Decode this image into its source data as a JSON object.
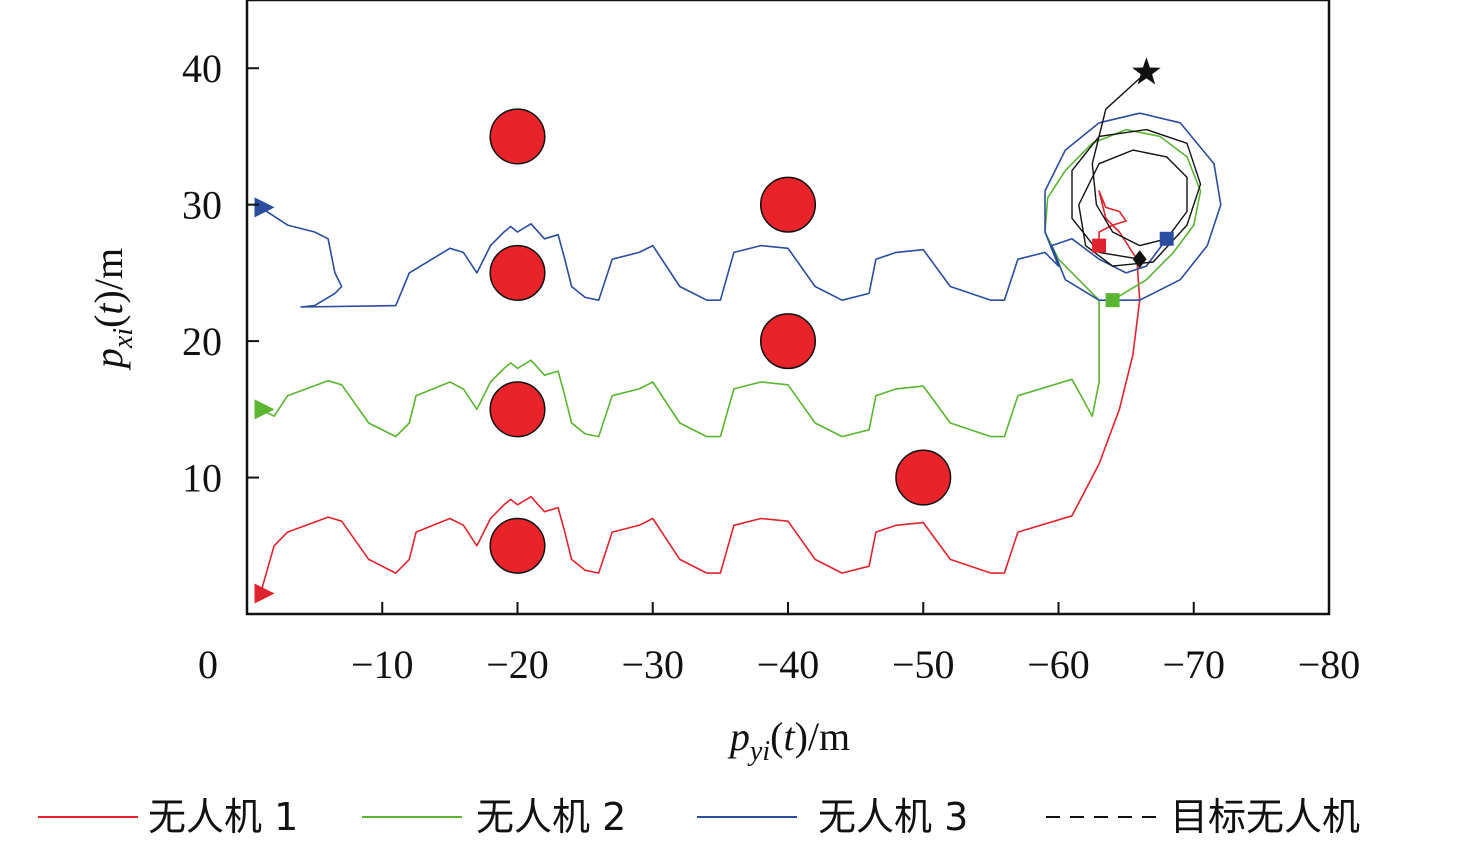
{
  "chart_data": {
    "type": "line",
    "xlabel": "p_yi(t)/m",
    "ylabel": "p_xi(t)/m",
    "xlim": [
      0,
      -80
    ],
    "ylim": [
      0,
      45
    ],
    "xticks": [
      0,
      -10,
      -20,
      -30,
      -40,
      -50,
      -60,
      -70,
      -80
    ],
    "xtick_labels": [
      "0",
      "−10",
      "−20",
      "−30",
      "−40",
      "−50",
      "−60",
      "−70",
      "−80"
    ],
    "yticks": [
      10,
      20,
      30,
      40
    ],
    "ytick_labels": [
      "10",
      "20",
      "30",
      "40"
    ],
    "grid": false,
    "legend_position": "bottom",
    "obstacles": [
      {
        "x": -20,
        "y": 35,
        "r": 2,
        "color": "#e8232a"
      },
      {
        "x": -40,
        "y": 30,
        "r": 2,
        "color": "#e8232a"
      },
      {
        "x": -20,
        "y": 25,
        "r": 2,
        "color": "#e8232a"
      },
      {
        "x": -40,
        "y": 20,
        "r": 2,
        "color": "#e8232a"
      },
      {
        "x": -20,
        "y": 15,
        "r": 2,
        "color": "#e8232a"
      },
      {
        "x": -50,
        "y": 10,
        "r": 2,
        "color": "#e8232a"
      },
      {
        "x": -20,
        "y": 5,
        "r": 2,
        "color": "#e8232a"
      }
    ],
    "series": [
      {
        "name": "无人机 1",
        "color": "#e0242f",
        "style": "solid",
        "start": {
          "x": -1,
          "y": 1.5
        },
        "end": {
          "x": -63,
          "y": 27
        },
        "points": [
          [
            -1,
            1.5
          ],
          [
            -2,
            5
          ],
          [
            -3,
            6
          ],
          [
            -6,
            7.1
          ],
          [
            -7,
            6.8
          ],
          [
            -9,
            4
          ],
          [
            -11,
            3
          ],
          [
            -12,
            4
          ],
          [
            -12.5,
            6
          ],
          [
            -15,
            7
          ],
          [
            -16,
            6.5
          ],
          [
            -17,
            5
          ],
          [
            -18,
            7
          ],
          [
            -19,
            8
          ],
          [
            -19.5,
            8.4
          ],
          [
            -20,
            8
          ],
          [
            -21,
            8.6
          ],
          [
            -22,
            7.5
          ],
          [
            -23,
            7.8
          ],
          [
            -23.5,
            6
          ],
          [
            -24,
            4
          ],
          [
            -25,
            3.2
          ],
          [
            -26,
            3
          ],
          [
            -27,
            6
          ],
          [
            -29,
            6.5
          ],
          [
            -30,
            7
          ],
          [
            -32,
            4
          ],
          [
            -34,
            3
          ],
          [
            -35,
            3
          ],
          [
            -36,
            6.5
          ],
          [
            -38,
            7
          ],
          [
            -40,
            6.8
          ],
          [
            -42,
            4
          ],
          [
            -44,
            3
          ],
          [
            -46,
            3.5
          ],
          [
            -46.5,
            6
          ],
          [
            -48,
            6.5
          ],
          [
            -50,
            6.7
          ],
          [
            -52,
            4
          ],
          [
            -55,
            3
          ],
          [
            -56,
            3
          ],
          [
            -57,
            6
          ],
          [
            -61,
            7.2
          ],
          [
            -63,
            11
          ],
          [
            -64.5,
            15
          ],
          [
            -65.5,
            19
          ],
          [
            -66,
            23
          ],
          [
            -65.8,
            26
          ],
          [
            -64.5,
            28
          ],
          [
            -63.5,
            29
          ],
          [
            -63,
            31
          ],
          [
            -63.5,
            29.8
          ],
          [
            -64.5,
            29.5
          ],
          [
            -65,
            28.8
          ],
          [
            -64,
            28.5
          ],
          [
            -63,
            28
          ],
          [
            -63,
            27
          ]
        ]
      },
      {
        "name": "无人机 2",
        "color": "#5ab530",
        "style": "solid",
        "start": {
          "x": -1,
          "y": 15
        },
        "end": {
          "x": -64,
          "y": 23
        },
        "points": [
          [
            -1,
            15
          ],
          [
            -2,
            14.5
          ],
          [
            -3,
            16
          ],
          [
            -6,
            17.1
          ],
          [
            -7,
            16.8
          ],
          [
            -9,
            14
          ],
          [
            -11,
            13
          ],
          [
            -12,
            14
          ],
          [
            -12.5,
            16
          ],
          [
            -15,
            17
          ],
          [
            -16,
            16.5
          ],
          [
            -17,
            15
          ],
          [
            -18,
            17
          ],
          [
            -19,
            18
          ],
          [
            -19.5,
            18.4
          ],
          [
            -20,
            18
          ],
          [
            -21,
            18.6
          ],
          [
            -22,
            17.5
          ],
          [
            -23,
            17.8
          ],
          [
            -23.5,
            16
          ],
          [
            -24,
            14
          ],
          [
            -25,
            13.2
          ],
          [
            -26,
            13
          ],
          [
            -27,
            16
          ],
          [
            -29,
            16.5
          ],
          [
            -30,
            17
          ],
          [
            -32,
            14
          ],
          [
            -34,
            13
          ],
          [
            -35,
            13
          ],
          [
            -36,
            16.5
          ],
          [
            -38,
            17
          ],
          [
            -40,
            16.8
          ],
          [
            -42,
            14
          ],
          [
            -44,
            13
          ],
          [
            -46,
            13.5
          ],
          [
            -46.5,
            16
          ],
          [
            -48,
            16.5
          ],
          [
            -50,
            16.7
          ],
          [
            -52,
            14
          ],
          [
            -55,
            13
          ],
          [
            -56,
            13
          ],
          [
            -57,
            16
          ],
          [
            -61,
            17.2
          ],
          [
            -62.5,
            14.5
          ],
          [
            -63,
            17
          ],
          [
            -63,
            20
          ],
          [
            -63,
            23
          ],
          [
            -61.5,
            24.5
          ],
          [
            -60,
            26
          ],
          [
            -59,
            28
          ],
          [
            -59.2,
            30.5
          ],
          [
            -60.5,
            32.5
          ],
          [
            -62.5,
            34.5
          ],
          [
            -65,
            35.5
          ],
          [
            -67.5,
            35
          ],
          [
            -69.5,
            33.5
          ],
          [
            -70.5,
            31
          ],
          [
            -70,
            28.5
          ],
          [
            -68.5,
            26.5
          ],
          [
            -66.5,
            24.5
          ],
          [
            -64,
            23
          ]
        ]
      },
      {
        "name": "无人机 3",
        "color": "#2a4da0",
        "style": "solid",
        "start": {
          "x": -1,
          "y": 29.8
        },
        "end": {
          "x": -68,
          "y": 27.5
        },
        "points": [
          [
            -1,
            29.8
          ],
          [
            -3,
            28.5
          ],
          [
            -5,
            28
          ],
          [
            -6,
            27.5
          ],
          [
            -6.5,
            25
          ],
          [
            -7,
            24
          ],
          [
            -6.5,
            23.5
          ],
          [
            -5,
            22.6
          ],
          [
            -4,
            22.5
          ],
          [
            -11,
            22.6
          ],
          [
            -12,
            25
          ],
          [
            -15,
            26.8
          ],
          [
            -16,
            26.5
          ],
          [
            -17,
            25
          ],
          [
            -18,
            27
          ],
          [
            -19,
            28
          ],
          [
            -19.5,
            28.4
          ],
          [
            -20,
            28
          ],
          [
            -21,
            28.6
          ],
          [
            -22,
            27.5
          ],
          [
            -23,
            27.8
          ],
          [
            -23.5,
            26
          ],
          [
            -24,
            24
          ],
          [
            -25,
            23.2
          ],
          [
            -26,
            23
          ],
          [
            -27,
            26
          ],
          [
            -29,
            26.5
          ],
          [
            -30,
            27
          ],
          [
            -32,
            24
          ],
          [
            -34,
            23
          ],
          [
            -35,
            23
          ],
          [
            -36,
            26.5
          ],
          [
            -38,
            27
          ],
          [
            -40,
            26.8
          ],
          [
            -42,
            24
          ],
          [
            -44,
            23
          ],
          [
            -46,
            23.5
          ],
          [
            -46.5,
            26
          ],
          [
            -48,
            26.5
          ],
          [
            -50,
            26.7
          ],
          [
            -52,
            24
          ],
          [
            -55,
            23
          ],
          [
            -56,
            23
          ],
          [
            -57,
            26
          ],
          [
            -59,
            26.5
          ],
          [
            -60,
            25.5
          ],
          [
            -59,
            28
          ],
          [
            -59,
            31
          ],
          [
            -60.5,
            34
          ],
          [
            -63,
            36
          ],
          [
            -66,
            36.7
          ],
          [
            -69,
            36
          ],
          [
            -71.5,
            33
          ],
          [
            -72,
            30
          ],
          [
            -71,
            27
          ],
          [
            -69,
            24.5
          ],
          [
            -66,
            23
          ],
          [
            -63,
            23
          ],
          [
            -60.5,
            24.5
          ],
          [
            -59.5,
            27
          ],
          [
            -61,
            27.5
          ],
          [
            -63,
            26
          ],
          [
            -65,
            25
          ],
          [
            -66.5,
            25.5
          ],
          [
            -68,
            27.5
          ]
        ]
      },
      {
        "name": "目标无人机",
        "color": "#111111",
        "style": "dashed",
        "start": {
          "x": -66.5,
          "y": 39.7
        },
        "end": {
          "x": -66,
          "y": 26
        },
        "points": [
          [
            -66.5,
            39.7
          ],
          [
            -63.5,
            37
          ],
          [
            -62.5,
            33
          ],
          [
            -62.8,
            30
          ],
          [
            -64,
            28
          ],
          [
            -66,
            27
          ],
          [
            -68,
            27.5
          ],
          [
            -69.5,
            29.5
          ],
          [
            -69.5,
            32
          ],
          [
            -68,
            33.5
          ],
          [
            -65.5,
            34
          ],
          [
            -63,
            33
          ],
          [
            -61.5,
            30
          ],
          [
            -62,
            27
          ],
          [
            -64,
            25.5
          ],
          [
            -67,
            25.8
          ],
          [
            -69.5,
            28.5
          ],
          [
            -70.5,
            31.5
          ],
          [
            -69.5,
            34.5
          ],
          [
            -66.5,
            35.5
          ],
          [
            -63,
            35
          ],
          [
            -61,
            32.5
          ],
          [
            -61,
            29
          ],
          [
            -63,
            26.5
          ],
          [
            -66,
            26
          ]
        ]
      }
    ]
  }
}
